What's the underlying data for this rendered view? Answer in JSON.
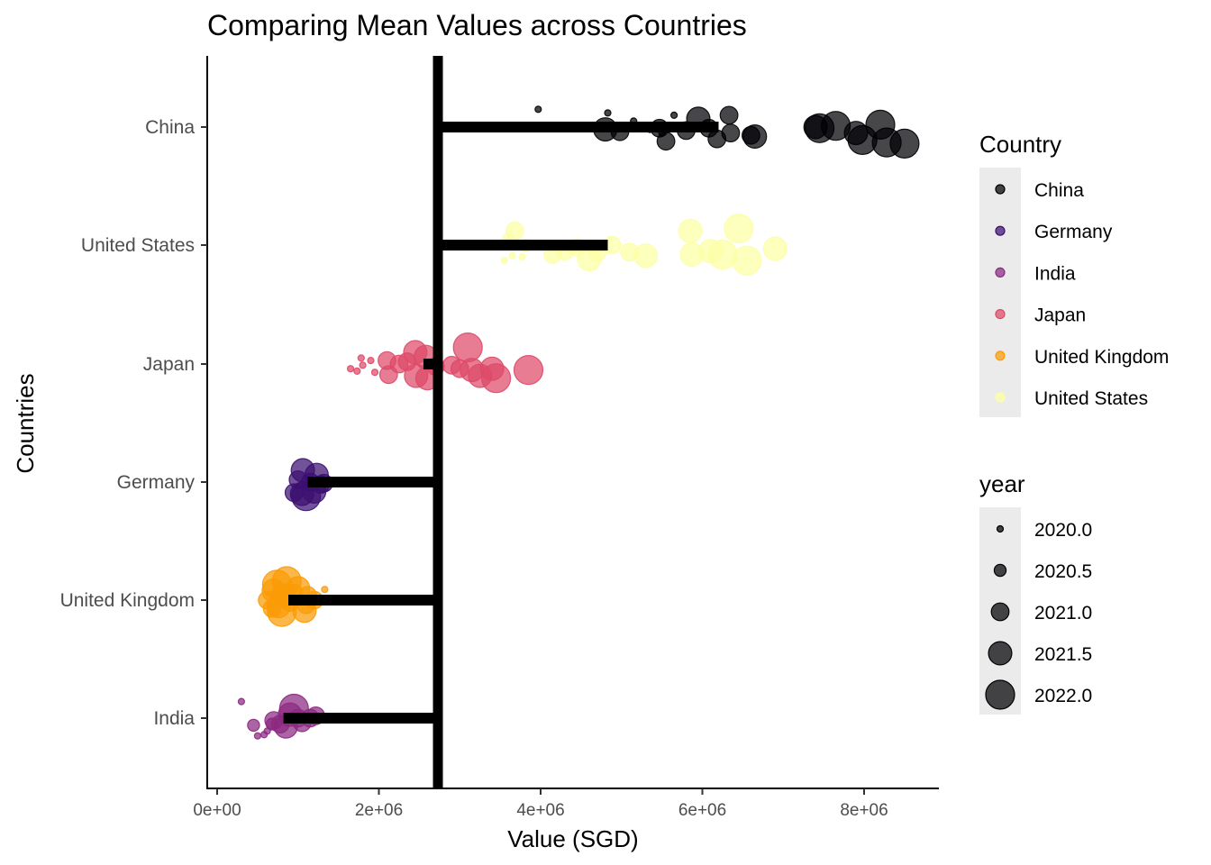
{
  "chart_data": {
    "type": "scatter",
    "title": "Comparing Mean Values across Countries",
    "xlabel": "Value (SGD)",
    "ylabel": "Countries",
    "xlim": [
      -100000,
      8900000
    ],
    "x_ticks": [
      0,
      2000000,
      4000000,
      6000000,
      8000000
    ],
    "x_tick_labels": [
      "0e+00",
      "2e+06",
      "4e+06",
      "6e+06",
      "8e+06"
    ],
    "categories": [
      "China",
      "United States",
      "Japan",
      "Germany",
      "United Kingdom",
      "India"
    ],
    "overall_mean": 2730000,
    "grid": false,
    "legend_placement": "right",
    "legend_country": {
      "title": "Country",
      "entries": [
        {
          "label": "China",
          "color": "#000004"
        },
        {
          "label": "Germany",
          "color": "#3b0f70"
        },
        {
          "label": "India",
          "color": "#8c2981"
        },
        {
          "label": "Japan",
          "color": "#de4968"
        },
        {
          "label": "United Kingdom",
          "color": "#fb9b06"
        },
        {
          "label": "United States",
          "color": "#fcffa4"
        }
      ]
    },
    "legend_year": {
      "title": "year",
      "entries": [
        {
          "label": "2020.0",
          "year": 2020.0
        },
        {
          "label": "2020.5",
          "year": 2020.5
        },
        {
          "label": "2021.0",
          "year": 2021.0
        },
        {
          "label": "2021.5",
          "year": 2021.5
        },
        {
          "label": "2022.0",
          "year": 2022.0
        }
      ]
    },
    "series": [
      {
        "name": "China",
        "color": "#000004",
        "mean": 6200000,
        "points": [
          {
            "x": 3970000,
            "year": 2020.0,
            "jitter": -0.15
          },
          {
            "x": 4830000,
            "year": 2020.0,
            "jitter": -0.12
          },
          {
            "x": 5150000,
            "year": 2020.0,
            "jitter": -0.05
          },
          {
            "x": 5350000,
            "year": 2020.0,
            "jitter": 0.02
          },
          {
            "x": 5500000,
            "year": 2020.0,
            "jitter": 0.05
          },
          {
            "x": 5650000,
            "year": 2020.0,
            "jitter": -0.1
          },
          {
            "x": 4800000,
            "year": 2021.5,
            "jitter": 0.02
          },
          {
            "x": 4980000,
            "year": 2021.0,
            "jitter": 0.04
          },
          {
            "x": 5470000,
            "year": 2021.0,
            "jitter": 0.01
          },
          {
            "x": 5550000,
            "year": 2021.0,
            "jitter": 0.12
          },
          {
            "x": 5800000,
            "year": 2021.0,
            "jitter": 0.03
          },
          {
            "x": 5950000,
            "year": 2021.5,
            "jitter": -0.07
          },
          {
            "x": 6080000,
            "year": 2021.0,
            "jitter": 0.01
          },
          {
            "x": 6180000,
            "year": 2021.0,
            "jitter": 0.1
          },
          {
            "x": 6330000,
            "year": 2021.0,
            "jitter": -0.1
          },
          {
            "x": 6350000,
            "year": 2021.0,
            "jitter": 0.05
          },
          {
            "x": 6600000,
            "year": 2021.0,
            "jitter": 0.07
          },
          {
            "x": 6650000,
            "year": 2021.5,
            "jitter": 0.08
          },
          {
            "x": 7400000,
            "year": 2021.5,
            "jitter": 0.0
          },
          {
            "x": 7450000,
            "year": 2022.0,
            "jitter": 0.01
          },
          {
            "x": 7650000,
            "year": 2022.0,
            "jitter": -0.01
          },
          {
            "x": 7900000,
            "year": 2021.5,
            "jitter": 0.05
          },
          {
            "x": 7980000,
            "year": 2022.0,
            "jitter": 0.11
          },
          {
            "x": 8200000,
            "year": 2022.0,
            "jitter": -0.02
          },
          {
            "x": 8280000,
            "year": 2022.0,
            "jitter": 0.13
          },
          {
            "x": 8500000,
            "year": 2022.0,
            "jitter": 0.14
          }
        ]
      },
      {
        "name": "United States",
        "color": "#fcffa4",
        "mean": 4830000,
        "points": [
          {
            "x": 3550000,
            "year": 2020.0,
            "jitter": 0.13
          },
          {
            "x": 3650000,
            "year": 2020.0,
            "jitter": 0.09
          },
          {
            "x": 3770000,
            "year": 2020.0,
            "jitter": 0.1
          },
          {
            "x": 3680000,
            "year": 2021.0,
            "jitter": -0.12
          },
          {
            "x": 3600000,
            "year": 2020.5,
            "jitter": -0.05
          },
          {
            "x": 3820000,
            "year": 2020.5,
            "jitter": 0.0
          },
          {
            "x": 4150000,
            "year": 2021.0,
            "jitter": 0.08
          },
          {
            "x": 4300000,
            "year": 2021.0,
            "jitter": 0.05
          },
          {
            "x": 4450000,
            "year": 2021.0,
            "jitter": 0.02
          },
          {
            "x": 4600000,
            "year": 2021.5,
            "jitter": 0.12
          },
          {
            "x": 4700000,
            "year": 2021.0,
            "jitter": 0.06
          },
          {
            "x": 4880000,
            "year": 2021.0,
            "jitter": 0.0
          },
          {
            "x": 5100000,
            "year": 2021.0,
            "jitter": 0.06
          },
          {
            "x": 5300000,
            "year": 2021.5,
            "jitter": 0.09
          },
          {
            "x": 5850000,
            "year": 2021.5,
            "jitter": -0.12
          },
          {
            "x": 5870000,
            "year": 2021.5,
            "jitter": 0.08
          },
          {
            "x": 6100000,
            "year": 2021.5,
            "jitter": 0.05
          },
          {
            "x": 6250000,
            "year": 2022.0,
            "jitter": 0.08
          },
          {
            "x": 6450000,
            "year": 2022.0,
            "jitter": -0.14
          },
          {
            "x": 6550000,
            "year": 2022.0,
            "jitter": 0.13
          },
          {
            "x": 6900000,
            "year": 2021.5,
            "jitter": 0.03
          }
        ]
      },
      {
        "name": "Japan",
        "color": "#de4968",
        "mean": 2550000,
        "points": [
          {
            "x": 1650000,
            "year": 2020.0,
            "jitter": 0.04
          },
          {
            "x": 1730000,
            "year": 2020.0,
            "jitter": 0.06
          },
          {
            "x": 1800000,
            "year": 2020.0,
            "jitter": 0.01
          },
          {
            "x": 1780000,
            "year": 2020.0,
            "jitter": -0.05
          },
          {
            "x": 1900000,
            "year": 2020.0,
            "jitter": -0.03
          },
          {
            "x": 1950000,
            "year": 2020.0,
            "jitter": 0.07
          },
          {
            "x": 2100000,
            "year": 2021.0,
            "jitter": -0.03
          },
          {
            "x": 2120000,
            "year": 2021.0,
            "jitter": 0.09
          },
          {
            "x": 2250000,
            "year": 2021.0,
            "jitter": 0.0
          },
          {
            "x": 2350000,
            "year": 2021.0,
            "jitter": -0.02
          },
          {
            "x": 2450000,
            "year": 2021.5,
            "jitter": -0.1
          },
          {
            "x": 2460000,
            "year": 2021.5,
            "jitter": 0.1
          },
          {
            "x": 2580000,
            "year": 2021.5,
            "jitter": -0.06
          },
          {
            "x": 2600000,
            "year": 2021.5,
            "jitter": 0.12
          },
          {
            "x": 2700000,
            "year": 2021.0,
            "jitter": 0.02
          },
          {
            "x": 2900000,
            "year": 2021.0,
            "jitter": 0.01
          },
          {
            "x": 3000000,
            "year": 2021.0,
            "jitter": 0.04
          },
          {
            "x": 3100000,
            "year": 2022.0,
            "jitter": -0.14
          },
          {
            "x": 3150000,
            "year": 2021.5,
            "jitter": 0.05
          },
          {
            "x": 3250000,
            "year": 2021.5,
            "jitter": 0.1
          },
          {
            "x": 3400000,
            "year": 2021.5,
            "jitter": 0.04
          },
          {
            "x": 3450000,
            "year": 2022.0,
            "jitter": 0.12
          },
          {
            "x": 3850000,
            "year": 2022.0,
            "jitter": 0.05
          }
        ]
      },
      {
        "name": "Germany",
        "color": "#3b0f70",
        "mean": 1120000,
        "points": [
          {
            "x": 950000,
            "year": 2021.0,
            "jitter": 0.09
          },
          {
            "x": 1000000,
            "year": 2021.0,
            "jitter": -0.02
          },
          {
            "x": 1050000,
            "year": 2021.5,
            "jitter": 0.1
          },
          {
            "x": 1060000,
            "year": 2021.5,
            "jitter": -0.1
          },
          {
            "x": 1100000,
            "year": 2022.0,
            "jitter": 0.12
          },
          {
            "x": 1150000,
            "year": 2021.0,
            "jitter": 0.0
          },
          {
            "x": 1200000,
            "year": 2021.5,
            "jitter": 0.08
          },
          {
            "x": 1230000,
            "year": 2021.5,
            "jitter": -0.06
          },
          {
            "x": 1280000,
            "year": 2021.0,
            "jitter": 0.02
          },
          {
            "x": 1320000,
            "year": 2021.0,
            "jitter": 0.01
          }
        ]
      },
      {
        "name": "United Kingdom",
        "color": "#fb9b06",
        "mean": 880000,
        "points": [
          {
            "x": 620000,
            "year": 2021.0,
            "jitter": 0.0
          },
          {
            "x": 680000,
            "year": 2021.0,
            "jitter": 0.07
          },
          {
            "x": 700000,
            "year": 2021.5,
            "jitter": -0.08
          },
          {
            "x": 740000,
            "year": 2022.0,
            "jitter": -0.13
          },
          {
            "x": 760000,
            "year": 2021.5,
            "jitter": 0.05
          },
          {
            "x": 800000,
            "year": 2022.0,
            "jitter": 0.1
          },
          {
            "x": 820000,
            "year": 2021.5,
            "jitter": -0.04
          },
          {
            "x": 860000,
            "year": 2022.0,
            "jitter": -0.16
          },
          {
            "x": 900000,
            "year": 2021.0,
            "jitter": 0.02
          },
          {
            "x": 950000,
            "year": 2021.0,
            "jitter": -0.06
          },
          {
            "x": 1000000,
            "year": 2021.5,
            "jitter": -0.1
          },
          {
            "x": 1080000,
            "year": 2021.5,
            "jitter": 0.09
          },
          {
            "x": 1100000,
            "year": 2021.0,
            "jitter": 0.04
          },
          {
            "x": 1120000,
            "year": 2021.0,
            "jitter": -0.04
          },
          {
            "x": 1200000,
            "year": 2021.0,
            "jitter": 0.0
          },
          {
            "x": 1330000,
            "year": 2020.0,
            "jitter": -0.09
          }
        ]
      },
      {
        "name": "India",
        "color": "#8c2981",
        "mean": 820000,
        "points": [
          {
            "x": 300000,
            "year": 2020.0,
            "jitter": -0.14
          },
          {
            "x": 450000,
            "year": 2020.5,
            "jitter": 0.06
          },
          {
            "x": 500000,
            "year": 2020.0,
            "jitter": 0.15
          },
          {
            "x": 580000,
            "year": 2020.0,
            "jitter": 0.14
          },
          {
            "x": 620000,
            "year": 2020.0,
            "jitter": 0.11
          },
          {
            "x": 680000,
            "year": 2020.5,
            "jitter": 0.05
          },
          {
            "x": 700000,
            "year": 2021.0,
            "jitter": 0.02
          },
          {
            "x": 780000,
            "year": 2021.0,
            "jitter": 0.05
          },
          {
            "x": 850000,
            "year": 2021.5,
            "jitter": 0.07
          },
          {
            "x": 900000,
            "year": 2021.5,
            "jitter": -0.03
          },
          {
            "x": 950000,
            "year": 2022.0,
            "jitter": -0.08
          },
          {
            "x": 1000000,
            "year": 2021.0,
            "jitter": 0.0
          },
          {
            "x": 1050000,
            "year": 2021.0,
            "jitter": 0.04
          },
          {
            "x": 1150000,
            "year": 2021.0,
            "jitter": 0.0
          },
          {
            "x": 1220000,
            "year": 2021.0,
            "jitter": -0.02
          }
        ]
      }
    ]
  }
}
